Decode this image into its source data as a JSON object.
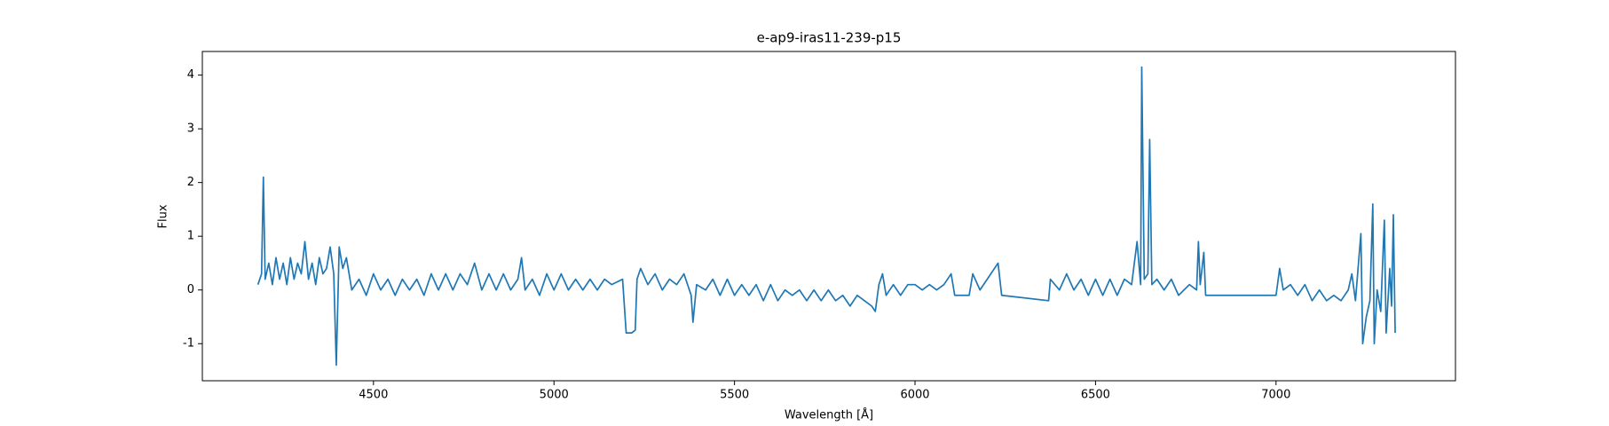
{
  "chart_data": {
    "type": "line",
    "title": "e-ap9-iras11-239-p15",
    "x_label": "Wavelength [Å]",
    "y_label": "Flux",
    "x": [
      4180,
      4190,
      4195,
      4200,
      4210,
      4220,
      4230,
      4240,
      4250,
      4260,
      4270,
      4280,
      4290,
      4300,
      4310,
      4320,
      4330,
      4340,
      4350,
      4360,
      4370,
      4380,
      4390,
      4397,
      4405,
      4415,
      4425,
      4440,
      4460,
      4480,
      4500,
      4520,
      4540,
      4560,
      4580,
      4600,
      4620,
      4640,
      4660,
      4680,
      4700,
      4720,
      4740,
      4760,
      4780,
      4800,
      4820,
      4840,
      4860,
      4880,
      4900,
      4910,
      4920,
      4940,
      4960,
      4980,
      5000,
      5020,
      5040,
      5060,
      5080,
      5100,
      5120,
      5140,
      5160,
      5190,
      5200,
      5215,
      5225,
      5230,
      5240,
      5260,
      5280,
      5300,
      5320,
      5340,
      5360,
      5380,
      5385,
      5395,
      5420,
      5440,
      5460,
      5480,
      5500,
      5520,
      5540,
      5560,
      5580,
      5600,
      5620,
      5640,
      5660,
      5680,
      5700,
      5720,
      5740,
      5760,
      5780,
      5800,
      5820,
      5840,
      5860,
      5880,
      5890,
      5900,
      5910,
      5920,
      5940,
      5960,
      5980,
      6000,
      6020,
      6040,
      6060,
      6080,
      6100,
      6110,
      6150,
      6160,
      6180,
      6200,
      6230,
      6240,
      6370,
      6375,
      6400,
      6420,
      6440,
      6460,
      6480,
      6500,
      6520,
      6540,
      6560,
      6580,
      6600,
      6615,
      6625,
      6628,
      6635,
      6645,
      6650,
      6656,
      6670,
      6690,
      6710,
      6730,
      6760,
      6780,
      6785,
      6790,
      6800,
      6805,
      7000,
      7010,
      7020,
      7040,
      7060,
      7080,
      7100,
      7120,
      7140,
      7160,
      7180,
      7200,
      7210,
      7220,
      7235,
      7240,
      7250,
      7260,
      7268,
      7272,
      7280,
      7290,
      7300,
      7305,
      7315,
      7320,
      7325,
      7330
    ],
    "values": [
      0.1,
      0.3,
      2.1,
      0.2,
      0.5,
      0.1,
      0.6,
      0.2,
      0.5,
      0.1,
      0.6,
      0.2,
      0.5,
      0.3,
      0.9,
      0.2,
      0.5,
      0.1,
      0.6,
      0.3,
      0.4,
      0.8,
      0.3,
      -1.4,
      0.8,
      0.4,
      0.6,
      0.0,
      0.2,
      -0.1,
      0.3,
      0.0,
      0.2,
      -0.1,
      0.2,
      0.0,
      0.2,
      -0.1,
      0.3,
      0.0,
      0.3,
      0.0,
      0.3,
      0.1,
      0.5,
      0.0,
      0.3,
      0.0,
      0.3,
      0.0,
      0.2,
      0.6,
      0.0,
      0.2,
      -0.1,
      0.3,
      0.0,
      0.3,
      0.0,
      0.2,
      0.0,
      0.2,
      0.0,
      0.2,
      0.1,
      0.2,
      -0.8,
      -0.8,
      -0.75,
      0.2,
      0.4,
      0.1,
      0.3,
      0.0,
      0.2,
      0.1,
      0.3,
      -0.1,
      -0.6,
      0.1,
      0.0,
      0.2,
      -0.1,
      0.2,
      -0.1,
      0.1,
      -0.1,
      0.1,
      -0.2,
      0.1,
      -0.2,
      0.0,
      -0.1,
      0.0,
      -0.2,
      0.0,
      -0.2,
      0.0,
      -0.2,
      -0.1,
      -0.3,
      -0.1,
      -0.2,
      -0.3,
      -0.4,
      0.1,
      0.3,
      -0.1,
      0.1,
      -0.1,
      0.1,
      0.1,
      0.0,
      0.1,
      0.0,
      0.1,
      0.3,
      -0.1,
      -0.1,
      0.3,
      0.0,
      0.2,
      0.5,
      -0.1,
      -0.2,
      0.2,
      0.0,
      0.3,
      0.0,
      0.2,
      -0.1,
      0.2,
      -0.1,
      0.2,
      -0.1,
      0.2,
      0.1,
      0.9,
      0.1,
      4.15,
      0.2,
      0.3,
      2.8,
      0.1,
      0.2,
      0.0,
      0.2,
      -0.1,
      0.1,
      0.0,
      0.9,
      0.1,
      0.7,
      -0.1,
      -0.1,
      0.4,
      0.0,
      0.1,
      -0.1,
      0.1,
      -0.2,
      0.0,
      -0.2,
      -0.1,
      -0.2,
      0.0,
      0.3,
      -0.2,
      1.05,
      -1.0,
      -0.5,
      -0.2,
      1.6,
      -1.0,
      0.0,
      -0.4,
      1.3,
      -0.8,
      0.4,
      -0.3,
      1.4,
      -0.8
    ],
    "color": "#1f77b4",
    "xlim": [
      4026,
      7497
    ],
    "ylim": [
      -1.69,
      4.44
    ],
    "xticks": [
      4500,
      5000,
      5500,
      6000,
      6500,
      7000
    ],
    "yticks": [
      -1,
      0,
      1,
      2,
      3,
      4
    ]
  }
}
